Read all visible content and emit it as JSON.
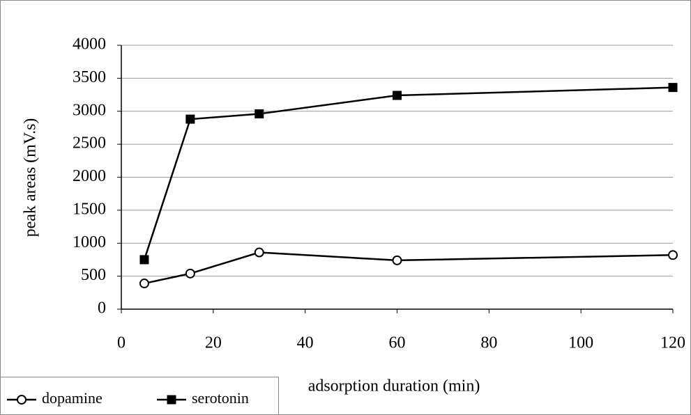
{
  "chart_data": {
    "type": "line",
    "x_label": "adsorption duration (min)",
    "y_label": "peak areas (mV.s)",
    "x": [
      5,
      15,
      30,
      60,
      120
    ],
    "series": [
      {
        "name": "dopamine",
        "color": "#000000",
        "marker": "circle",
        "values": [
          390,
          540,
          860,
          740,
          820
        ]
      },
      {
        "name": "serotonin",
        "color": "#000000",
        "marker": "square",
        "values": [
          750,
          2880,
          2960,
          3240,
          3360
        ]
      }
    ],
    "xlim": [
      0,
      120
    ],
    "xticks": [
      0,
      20,
      40,
      60,
      80,
      100,
      120
    ],
    "ylim": [
      0,
      4000
    ],
    "yticks": [
      0,
      500,
      1000,
      1500,
      2000,
      2500,
      3000,
      3500,
      4000
    ],
    "grid": true,
    "legend": "lower left"
  }
}
